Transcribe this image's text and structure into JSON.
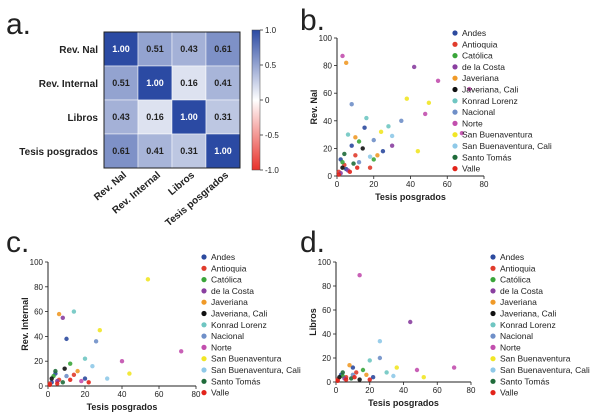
{
  "panel_labels": {
    "a": "a.",
    "b": "b.",
    "c": "c.",
    "d": "d."
  },
  "colors": {
    "Andes": "#2c4a9e",
    "Antioquia": "#e03c2c",
    "Católica": "#3aa53a",
    "de la Costa": "#8a3fa0",
    "Javeriana": "#f09a28",
    "Javeriana, Cali": "#111111",
    "Konrad Lorenz": "#6fc6c2",
    "Nacional": "#6f8fc8",
    "Norte": "#c24fae",
    "San Buenaventura": "#f1e625",
    "San Buenaventura, Cali": "#8fc9e8",
    "Santo Tomás": "#1f6b3a",
    "Valle": "#e2231a"
  },
  "chart_data": [
    {
      "type": "heatmap",
      "rows": [
        "Rev. Nal",
        "Rev. Internal",
        "Libros",
        "Tesis posgrados"
      ],
      "columns": [
        "Rev. Nal",
        "Rev. Internal",
        "Libros",
        "Tesis posgrados"
      ],
      "values": [
        [
          1.0,
          0.51,
          0.43,
          0.61
        ],
        [
          0.51,
          1.0,
          0.16,
          0.41
        ],
        [
          0.43,
          0.16,
          1.0,
          0.31
        ],
        [
          0.61,
          0.41,
          0.31,
          1.0
        ]
      ],
      "value_labels": [
        [
          "1.00",
          "0.51",
          "0.43",
          "0.61"
        ],
        [
          "0.51",
          "1.00",
          "0.16",
          "0.41"
        ],
        [
          "0.43",
          "0.16",
          "1.00",
          "0.31"
        ],
        [
          "0.61",
          "0.41",
          "0.31",
          "1.00"
        ]
      ],
      "colorbar": {
        "range": [
          -1.0,
          1.0
        ],
        "ticks": [
          "1.0",
          "0.5",
          "0",
          "-0.5",
          "-1.0"
        ],
        "tick_values": [
          1.0,
          0.5,
          0,
          -0.5,
          -1.0
        ],
        "low_color": "#e8312a",
        "mid_color": "#ffffff",
        "high_color": "#2b4aa3"
      }
    },
    {
      "type": "scatter",
      "xlabel": "Tesis posgrados",
      "ylabel": "Rev. Nal",
      "xlim": [
        0,
        80
      ],
      "ylim": [
        0,
        100
      ],
      "xticks": [
        "0",
        "20",
        "40",
        "60",
        "80"
      ],
      "yticks": [
        "0",
        "20",
        "40",
        "60",
        "80",
        "100"
      ],
      "legend": [
        "Andes",
        "Antioquia",
        "Católica",
        "de la Costa",
        "Javeriana",
        "Javeriana, Cali",
        "Konrad Lorenz",
        "Nacional",
        "Norte",
        "San Buenaventura",
        "San Buenaventura, Cali",
        "Santo Tomás",
        "Valle"
      ],
      "legend_position": "right",
      "points": [
        {
          "s": "Andes",
          "x": 2,
          "y": 12
        },
        {
          "s": "Andes",
          "x": 8,
          "y": 22
        },
        {
          "s": "Andes",
          "x": 15,
          "y": 35
        },
        {
          "s": "Andes",
          "x": 25,
          "y": 18
        },
        {
          "s": "Andes",
          "x": 5,
          "y": 5
        },
        {
          "s": "Antioquia",
          "x": 1,
          "y": 3
        },
        {
          "s": "Antioquia",
          "x": 4,
          "y": 8
        },
        {
          "s": "Antioquia",
          "x": 10,
          "y": 15
        },
        {
          "s": "Antioquia",
          "x": 18,
          "y": 6
        },
        {
          "s": "Católica",
          "x": 3,
          "y": 10
        },
        {
          "s": "Católica",
          "x": 12,
          "y": 25
        },
        {
          "s": "Católica",
          "x": 20,
          "y": 12
        },
        {
          "s": "de la Costa",
          "x": 2,
          "y": 2
        },
        {
          "s": "de la Costa",
          "x": 6,
          "y": 4
        },
        {
          "s": "de la Costa",
          "x": 42,
          "y": 79
        },
        {
          "s": "de la Costa",
          "x": 30,
          "y": 22
        },
        {
          "s": "Javeriana",
          "x": 5,
          "y": 82
        },
        {
          "s": "Javeriana",
          "x": 10,
          "y": 28
        },
        {
          "s": "Javeriana",
          "x": 22,
          "y": 15
        },
        {
          "s": "Javeriana, Cali",
          "x": 3,
          "y": 6
        },
        {
          "s": "Javeriana, Cali",
          "x": 14,
          "y": 20
        },
        {
          "s": "Konrad Lorenz",
          "x": 6,
          "y": 30
        },
        {
          "s": "Konrad Lorenz",
          "x": 16,
          "y": 42
        },
        {
          "s": "Konrad Lorenz",
          "x": 28,
          "y": 36
        },
        {
          "s": "Nacional",
          "x": 8,
          "y": 52
        },
        {
          "s": "Nacional",
          "x": 20,
          "y": 26
        },
        {
          "s": "Nacional",
          "x": 35,
          "y": 40
        },
        {
          "s": "Nacional",
          "x": 12,
          "y": 10
        },
        {
          "s": "Norte",
          "x": 3,
          "y": 87
        },
        {
          "s": "Norte",
          "x": 55,
          "y": 69
        },
        {
          "s": "Norte",
          "x": 72,
          "y": 63
        },
        {
          "s": "Norte",
          "x": 68,
          "y": 31
        },
        {
          "s": "Norte",
          "x": 48,
          "y": 45
        },
        {
          "s": "San Buenaventura",
          "x": 38,
          "y": 56
        },
        {
          "s": "San Buenaventura",
          "x": 50,
          "y": 53
        },
        {
          "s": "San Buenaventura",
          "x": 24,
          "y": 32
        },
        {
          "s": "San Buenaventura",
          "x": 44,
          "y": 18
        },
        {
          "s": "San Buenaventura, Cali",
          "x": 30,
          "y": 29
        },
        {
          "s": "San Buenaventura, Cali",
          "x": 18,
          "y": 14
        },
        {
          "s": "Santo Tomás",
          "x": 4,
          "y": 16
        },
        {
          "s": "Santo Tomás",
          "x": 9,
          "y": 9
        },
        {
          "s": "Valle",
          "x": 1,
          "y": 1
        },
        {
          "s": "Valle",
          "x": 7,
          "y": 3
        },
        {
          "s": "Valle",
          "x": 11,
          "y": 6
        }
      ]
    },
    {
      "type": "scatter",
      "xlabel": "Tesis posgrados",
      "ylabel": "Rev. Internal",
      "xlim": [
        0,
        80
      ],
      "ylim": [
        0,
        100
      ],
      "xticks": [
        "0",
        "20",
        "40",
        "60",
        "80"
      ],
      "yticks": [
        "0",
        "20",
        "40",
        "60",
        "80",
        "100"
      ],
      "legend": [
        "Andes",
        "Antioquia",
        "Católica",
        "de la Costa",
        "Javeriana",
        "Javeriana, Cali",
        "Konrad Lorenz",
        "Nacional",
        "Norte",
        "San Buenaventura",
        "San Buenaventura, Cali",
        "Santo Tomás",
        "Valle"
      ],
      "legend_position": "right",
      "points": [
        {
          "s": "Andes",
          "x": 4,
          "y": 10
        },
        {
          "s": "Andes",
          "x": 10,
          "y": 38
        },
        {
          "s": "Andes",
          "x": 20,
          "y": 6
        },
        {
          "s": "Andes",
          "x": 2,
          "y": 3
        },
        {
          "s": "Antioquia",
          "x": 1,
          "y": 2
        },
        {
          "s": "Antioquia",
          "x": 6,
          "y": 5
        },
        {
          "s": "Antioquia",
          "x": 14,
          "y": 9
        },
        {
          "s": "Católica",
          "x": 3,
          "y": 8
        },
        {
          "s": "Católica",
          "x": 12,
          "y": 18
        },
        {
          "s": "de la Costa",
          "x": 8,
          "y": 55
        },
        {
          "s": "de la Costa",
          "x": 5,
          "y": 4
        },
        {
          "s": "Javeriana",
          "x": 6,
          "y": 58
        },
        {
          "s": "Javeriana",
          "x": 16,
          "y": 12
        },
        {
          "s": "Javeriana, Cali",
          "x": 2,
          "y": 6
        },
        {
          "s": "Javeriana, Cali",
          "x": 9,
          "y": 14
        },
        {
          "s": "Konrad Lorenz",
          "x": 14,
          "y": 60
        },
        {
          "s": "Konrad Lorenz",
          "x": 20,
          "y": 22
        },
        {
          "s": "Nacional",
          "x": 26,
          "y": 36
        },
        {
          "s": "Nacional",
          "x": 10,
          "y": 8
        },
        {
          "s": "Norte",
          "x": 72,
          "y": 28
        },
        {
          "s": "Norte",
          "x": 40,
          "y": 20
        },
        {
          "s": "Norte",
          "x": 18,
          "y": 4
        },
        {
          "s": "San Buenaventura",
          "x": 54,
          "y": 86
        },
        {
          "s": "San Buenaventura",
          "x": 28,
          "y": 45
        },
        {
          "s": "San Buenaventura",
          "x": 44,
          "y": 10
        },
        {
          "s": "San Buenaventura, Cali",
          "x": 24,
          "y": 16
        },
        {
          "s": "San Buenaventura, Cali",
          "x": 32,
          "y": 6
        },
        {
          "s": "Santo Tomás",
          "x": 4,
          "y": 12
        },
        {
          "s": "Santo Tomás",
          "x": 8,
          "y": 3
        },
        {
          "s": "Valle",
          "x": 1,
          "y": 1
        },
        {
          "s": "Valle",
          "x": 5,
          "y": 2
        },
        {
          "s": "Valle",
          "x": 12,
          "y": 5
        },
        {
          "s": "Valle",
          "x": 22,
          "y": 3
        }
      ]
    },
    {
      "type": "scatter",
      "xlabel": "Tesis posgrados",
      "ylabel": "Libros",
      "xlim": [
        0,
        80
      ],
      "ylim": [
        0,
        100
      ],
      "xticks": [
        "0",
        "20",
        "40",
        "60",
        "80"
      ],
      "yticks": [
        "0",
        "20",
        "40",
        "60",
        "80",
        "100"
      ],
      "legend": [
        "Andes",
        "Antioquia",
        "Católica",
        "de la Costa",
        "Javeriana",
        "Javeriana, Cali",
        "Konrad Lorenz",
        "Nacional",
        "Norte",
        "San Buenaventura",
        "San Buenaventura, Cali",
        "Santo Tomás",
        "Valle"
      ],
      "legend_position": "right",
      "points": [
        {
          "s": "Andes",
          "x": 3,
          "y": 6
        },
        {
          "s": "Andes",
          "x": 10,
          "y": 12
        },
        {
          "s": "Andes",
          "x": 22,
          "y": 4
        },
        {
          "s": "Antioquia",
          "x": 1,
          "y": 2
        },
        {
          "s": "Antioquia",
          "x": 6,
          "y": 4
        },
        {
          "s": "Antioquia",
          "x": 12,
          "y": 8
        },
        {
          "s": "Católica",
          "x": 4,
          "y": 5
        },
        {
          "s": "Católica",
          "x": 16,
          "y": 10
        },
        {
          "s": "de la Costa",
          "x": 5,
          "y": 3
        },
        {
          "s": "de la Costa",
          "x": 44,
          "y": 50
        },
        {
          "s": "Javeriana",
          "x": 8,
          "y": 14
        },
        {
          "s": "Javeriana",
          "x": 18,
          "y": 6
        },
        {
          "s": "Javeriana, Cali",
          "x": 2,
          "y": 4
        },
        {
          "s": "Javeriana, Cali",
          "x": 14,
          "y": 2
        },
        {
          "s": "Konrad Lorenz",
          "x": 20,
          "y": 18
        },
        {
          "s": "Konrad Lorenz",
          "x": 30,
          "y": 8
        },
        {
          "s": "Nacional",
          "x": 26,
          "y": 20
        },
        {
          "s": "Nacional",
          "x": 10,
          "y": 6
        },
        {
          "s": "Norte",
          "x": 14,
          "y": 89
        },
        {
          "s": "Norte",
          "x": 70,
          "y": 12
        },
        {
          "s": "Norte",
          "x": 48,
          "y": 10
        },
        {
          "s": "San Buenaventura",
          "x": 52,
          "y": 4
        },
        {
          "s": "San Buenaventura",
          "x": 36,
          "y": 12
        },
        {
          "s": "San Buenaventura, Cali",
          "x": 26,
          "y": 34
        },
        {
          "s": "San Buenaventura, Cali",
          "x": 34,
          "y": 5
        },
        {
          "s": "Santo Tomás",
          "x": 4,
          "y": 8
        },
        {
          "s": "Santo Tomás",
          "x": 9,
          "y": 3
        },
        {
          "s": "Valle",
          "x": 1,
          "y": 1
        },
        {
          "s": "Valle",
          "x": 6,
          "y": 2
        },
        {
          "s": "Valle",
          "x": 11,
          "y": 4
        },
        {
          "s": "Valle",
          "x": 20,
          "y": 2
        }
      ]
    }
  ]
}
